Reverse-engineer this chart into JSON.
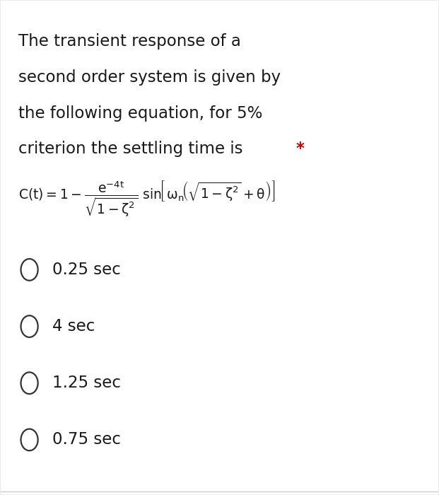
{
  "bg_color": "#ebebeb",
  "inner_bg_color": "#ffffff",
  "question_text": "The transient response of a\nsecond order system is given by\nthe following equation, for 5%\ncriterion the settling time is",
  "asterisk": " *",
  "asterisk_color": "#cc0000",
  "options": [
    "0.25 sec",
    "4 sec",
    "1.25 sec",
    "0.75 sec"
  ],
  "question_fontsize": 16.5,
  "option_fontsize": 16.5,
  "text_color": "#1a1a1a",
  "circle_edge_color": "#333333"
}
